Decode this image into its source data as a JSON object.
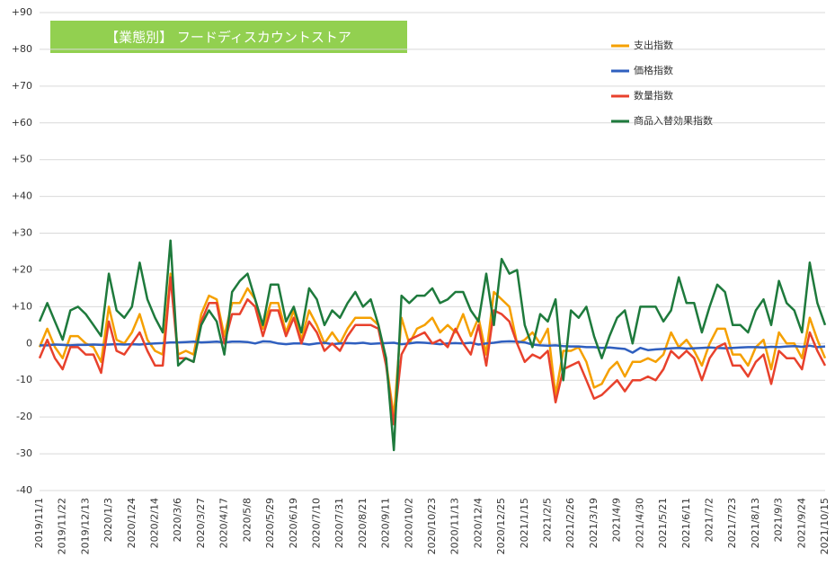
{
  "chart_data": {
    "type": "line",
    "title": "【業態別】 フードディスカウントストア",
    "categories": [
      "2019/11/1",
      null,
      null,
      "2019/11/22",
      null,
      null,
      "2019/12/13",
      null,
      null,
      "2020/1/3",
      null,
      null,
      "2020/1/24",
      null,
      null,
      "2020/2/14",
      null,
      null,
      "2020/3/6",
      null,
      null,
      "2020/3/27",
      null,
      null,
      "2020/4/17",
      null,
      null,
      "2020/5/8",
      null,
      null,
      "2020/5/29",
      null,
      null,
      "2020/6/19",
      null,
      null,
      "2020/7/10",
      null,
      null,
      "2020/7/31",
      null,
      null,
      "2020/8/21",
      null,
      null,
      "2020/9/11",
      null,
      null,
      "2020/10/2",
      null,
      null,
      "2020/10/23",
      null,
      null,
      "2020/11/13",
      null,
      null,
      "2020/12/4",
      null,
      null,
      "2020/12/25",
      null,
      null,
      "2021/1/15",
      null,
      null,
      "2021/2/5",
      null,
      null,
      "2021/2/26",
      null,
      null,
      "2021/3/19",
      null,
      null,
      "2021/4/9",
      null,
      null,
      "2021/4/30",
      null,
      null,
      "2021/5/21",
      null,
      null,
      "2021/6/11",
      null,
      null,
      "2021/7/2",
      null,
      null,
      "2021/7/23",
      null,
      null,
      "2021/8/13",
      null,
      null,
      "2021/9/3",
      null,
      null,
      "2021/9/24",
      null,
      null,
      "2021/10/15"
    ],
    "series": [
      {
        "name": "支出指数",
        "color": "#f5a000",
        "values": [
          -1,
          4,
          -1,
          -4,
          2,
          2,
          0,
          -1,
          -5,
          10,
          1,
          0,
          3,
          8,
          1,
          -2,
          -3,
          19,
          -3,
          -2,
          -3,
          8,
          13,
          12,
          2,
          11,
          11,
          15,
          12,
          4,
          11,
          11,
          3,
          9,
          1,
          9,
          5,
          0,
          3,
          0,
          4,
          7,
          7,
          7,
          5,
          -5,
          -20,
          7,
          0,
          4,
          5,
          7,
          3,
          5,
          3,
          8,
          2,
          7,
          -3,
          14,
          12,
          10,
          0,
          1,
          3,
          0,
          4,
          -14,
          -2,
          -2,
          -1,
          -5,
          -12,
          -11,
          -7,
          -5,
          -9,
          -5,
          -5,
          -4,
          -5,
          -3,
          3,
          -1,
          1,
          -2,
          -6,
          0,
          4,
          4,
          -3,
          -3,
          -6,
          -1,
          1,
          -7,
          3,
          0,
          0,
          -4,
          7,
          1,
          -4
        ]
      },
      {
        "name": "価格指数",
        "color": "#2f5fbf",
        "values": [
          -0.5,
          -0.5,
          -0.3,
          -0.4,
          -0.5,
          -0.4,
          -0.4,
          -0.3,
          -0.4,
          -0.3,
          -0.2,
          -0.3,
          -0.2,
          -0.3,
          -0.1,
          0,
          0.1,
          0.3,
          0.3,
          0.4,
          0.5,
          0.3,
          0.4,
          0.5,
          0.3,
          0.5,
          0.5,
          0.4,
          0,
          0.6,
          0.5,
          0,
          -0.2,
          0,
          0,
          -0.3,
          0,
          0.2,
          -0.2,
          0,
          0.1,
          0,
          0.2,
          -0.1,
          0,
          0.1,
          0.2,
          -0.2,
          0,
          0.3,
          0.2,
          0,
          -0.2,
          0,
          0.1,
          0,
          0.2,
          -0.3,
          0,
          0.2,
          0.5,
          0.6,
          0.5,
          0.3,
          -0.3,
          -0.5,
          -0.6,
          -0.5,
          -0.7,
          -0.8,
          -0.8,
          -1,
          -1,
          -1.2,
          -1.1,
          -1.3,
          -1.5,
          -2.5,
          -1.2,
          -1.8,
          -1.6,
          -1.5,
          -1.3,
          -1.2,
          -1.4,
          -1.3,
          -1.2,
          -1.1,
          -1.2,
          -1.3,
          -1.2,
          -1.1,
          -1,
          -1,
          -1.1,
          -0.9,
          -1,
          -0.8,
          -0.7,
          -0.9,
          -0.6,
          -1,
          -0.8
        ]
      },
      {
        "name": "数量指数",
        "color": "#e8412c",
        "values": [
          -4,
          1,
          -4,
          -7,
          -1,
          -1,
          -3,
          -3,
          -8,
          6,
          -2,
          -3,
          0,
          3,
          -2,
          -6,
          -6,
          18,
          -4,
          -4,
          -5,
          6,
          11,
          11,
          0,
          8,
          8,
          12,
          10,
          2,
          9,
          9,
          2,
          7,
          0,
          6,
          3,
          -2,
          0,
          -2,
          2,
          5,
          5,
          5,
          4,
          -6,
          -22,
          -3,
          1,
          2,
          3,
          0,
          1,
          -1,
          4,
          0,
          -3,
          5,
          -6,
          9,
          8,
          6,
          0,
          -5,
          -3,
          -4,
          -2,
          -16,
          -7,
          -6,
          -5,
          -10,
          -15,
          -14,
          -12,
          -10,
          -13,
          -10,
          -10,
          -9,
          -10,
          -7,
          -2,
          -4,
          -2,
          -4,
          -10,
          -4,
          -1,
          0,
          -6,
          -6,
          -9,
          -5,
          -3,
          -11,
          -2,
          -4,
          -4,
          -7,
          3,
          -2,
          -6
        ]
      },
      {
        "name": "商品入替効果指数",
        "color": "#1e7a3c",
        "values": [
          6,
          11,
          6,
          1,
          9,
          10,
          8,
          5,
          2,
          19,
          9,
          7,
          10,
          22,
          12,
          7,
          3,
          28,
          -6,
          -4,
          -5,
          5,
          9,
          6,
          -3,
          14,
          17,
          19,
          12,
          5,
          16,
          16,
          6,
          10,
          3,
          15,
          12,
          5,
          9,
          7,
          11,
          14,
          10,
          12,
          5,
          -4,
          -29,
          13,
          11,
          13,
          13,
          15,
          11,
          12,
          14,
          14,
          9,
          6,
          19,
          5,
          23,
          19,
          20,
          5,
          -1,
          8,
          6,
          12,
          -10,
          9,
          7,
          10,
          2,
          -4,
          2,
          7,
          9,
          0,
          10,
          10,
          10,
          6,
          9,
          18,
          11,
          11,
          3,
          10,
          16,
          14,
          5,
          5,
          3,
          9,
          12,
          5,
          17,
          11,
          9,
          3,
          22,
          11,
          5
        ]
      }
    ],
    "ylim": [
      -40,
      90
    ],
    "yticks": [
      {
        "value": 90,
        "label": "+90"
      },
      {
        "value": 80,
        "label": "+80"
      },
      {
        "value": 70,
        "label": "+70"
      },
      {
        "value": 60,
        "label": "+60"
      },
      {
        "value": 50,
        "label": "+50"
      },
      {
        "value": 40,
        "label": "+40"
      },
      {
        "value": 30,
        "label": "+30"
      },
      {
        "value": 20,
        "label": "+20"
      },
      {
        "value": 10,
        "label": "+10"
      },
      0,
      -10,
      -20,
      -30,
      -40
    ],
    "grid": true,
    "legend": "upper-right"
  }
}
